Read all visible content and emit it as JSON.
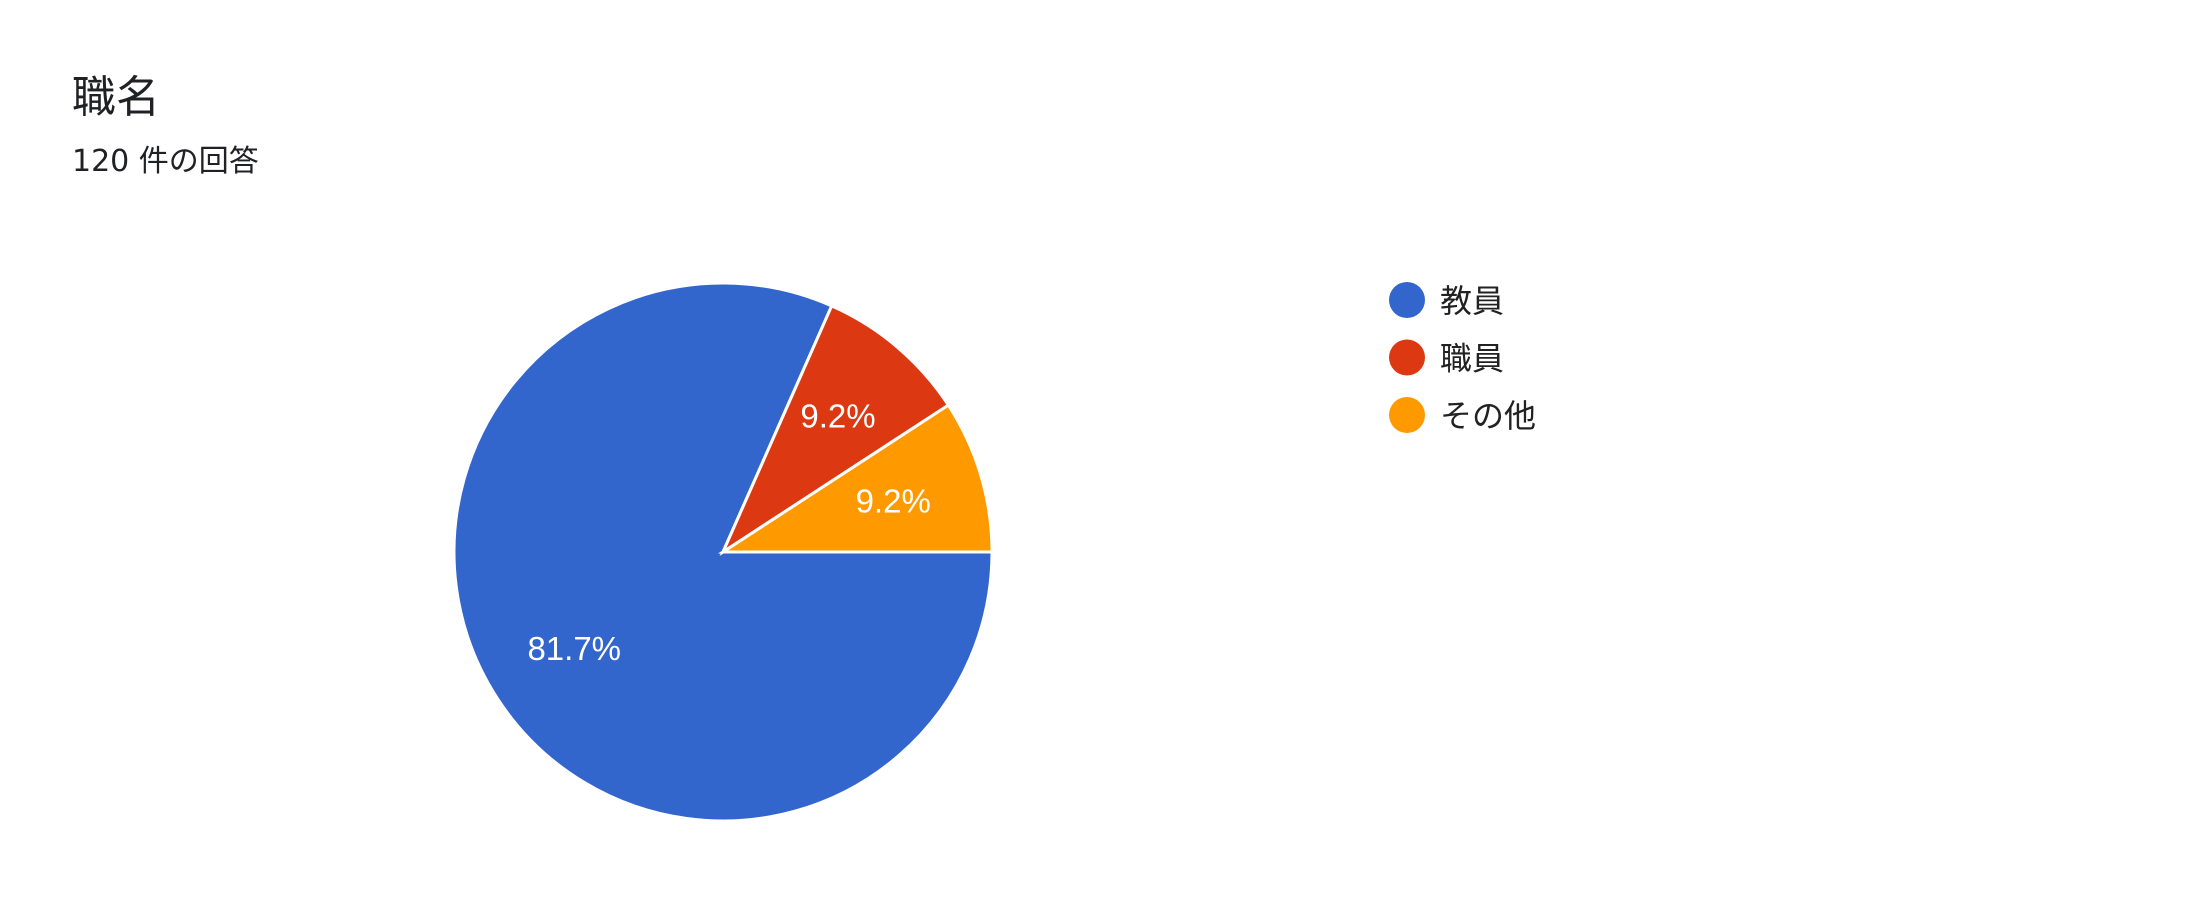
{
  "header": {
    "title": "職名",
    "subtitle": "120 件の回答"
  },
  "chart_data": {
    "type": "pie",
    "title": "職名",
    "subtitle": "120 件の回答",
    "start_angle": "3 o'clock, clockwise",
    "legend_position": "right",
    "slices": [
      {
        "label": "教員",
        "value": 81.7,
        "display": "81.7%",
        "color": "#3366cc"
      },
      {
        "label": "職員",
        "value": 9.2,
        "display": "9.2%",
        "color": "#dc3912"
      },
      {
        "label": "その他",
        "value": 9.2,
        "display": "9.2%",
        "color": "#ff9900"
      }
    ]
  }
}
